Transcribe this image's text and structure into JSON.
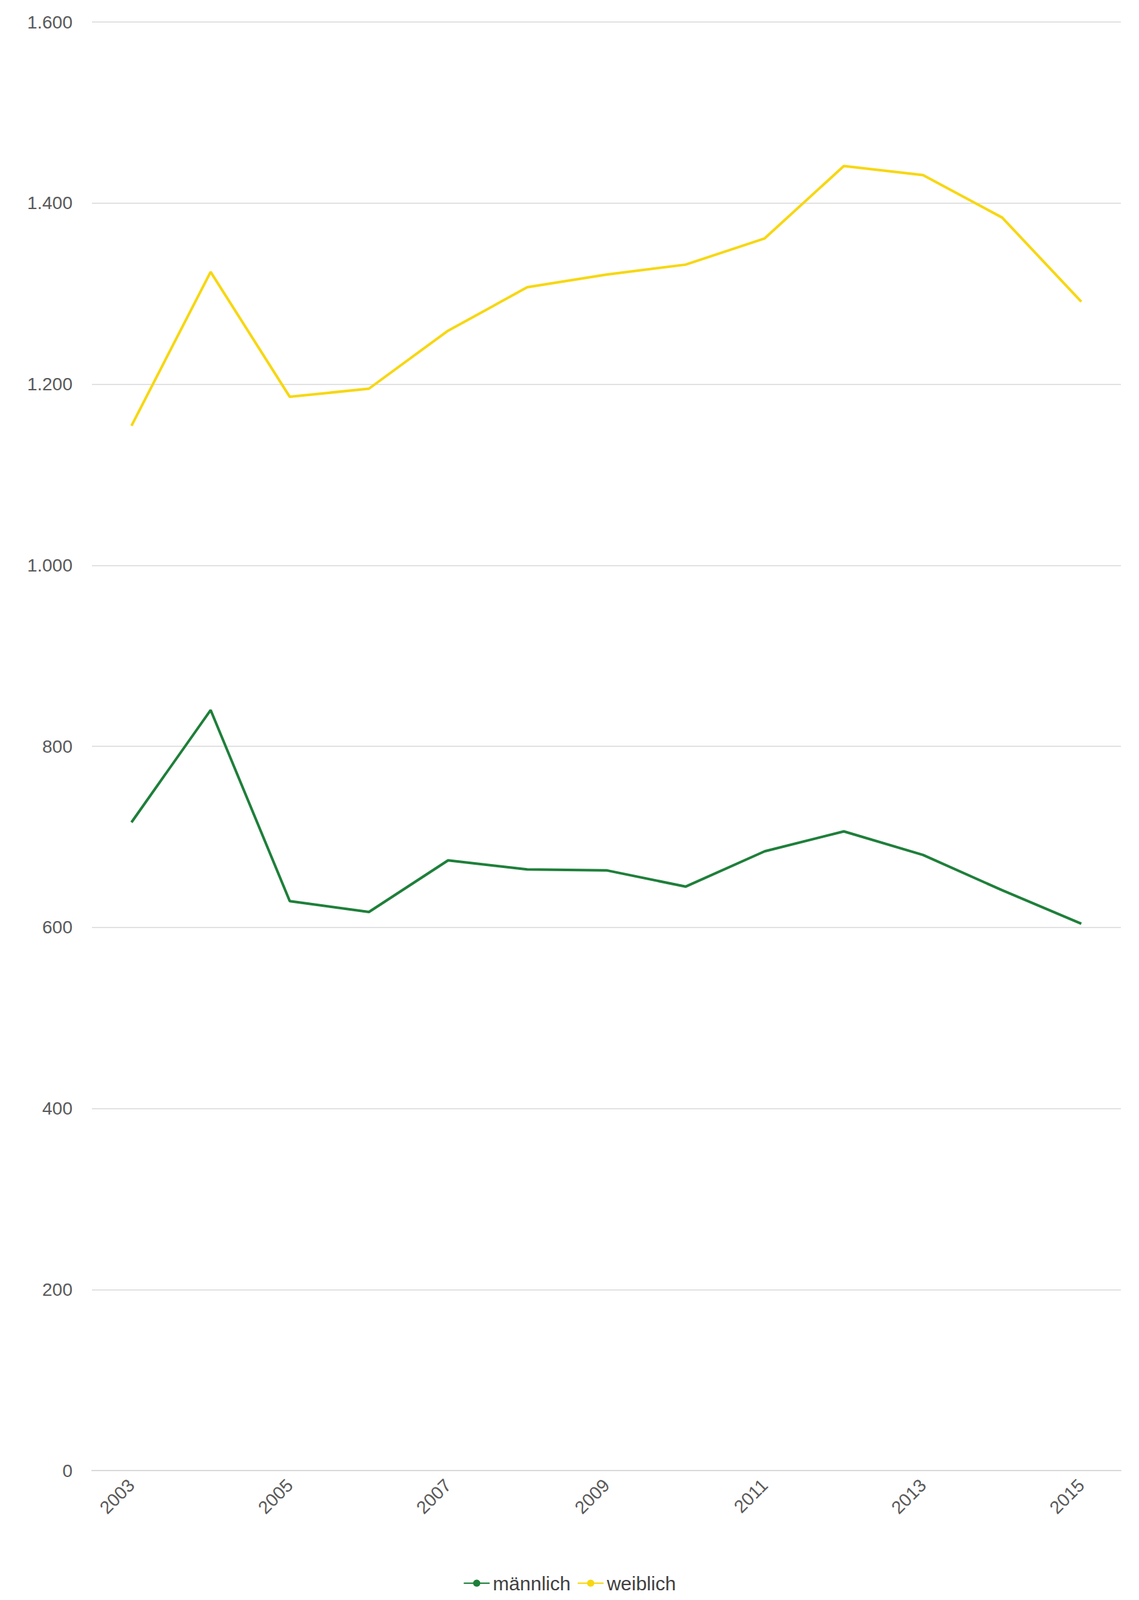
{
  "chart_data": {
    "type": "line",
    "categories": [
      "2003",
      null,
      "2005",
      null,
      "2007",
      null,
      "2009",
      null,
      "2011",
      null,
      "2013",
      null,
      "2015"
    ],
    "series": [
      {
        "name": "männlich",
        "color": "#1e7f3a",
        "values": [
          716,
          840,
          629,
          617,
          674,
          664,
          663,
          645,
          684,
          706,
          680,
          641,
          604
        ]
      },
      {
        "name": "weiblich",
        "color": "#f7d711",
        "values": [
          1154,
          1324,
          1186,
          1195,
          1259,
          1307,
          1321,
          1332,
          1361,
          1441,
          1431,
          1384,
          1291
        ]
      }
    ],
    "ylim": [
      0,
      1600
    ],
    "yticks": [
      0,
      200,
      400,
      600,
      800,
      {
        "value": 1000,
        "label": "1.000"
      },
      {
        "value": 1200,
        "label": "1.200"
      },
      {
        "value": 1400,
        "label": "1.400"
      },
      {
        "value": 1600,
        "label": "1.600"
      }
    ],
    "grid": true,
    "legend": "bottom"
  }
}
